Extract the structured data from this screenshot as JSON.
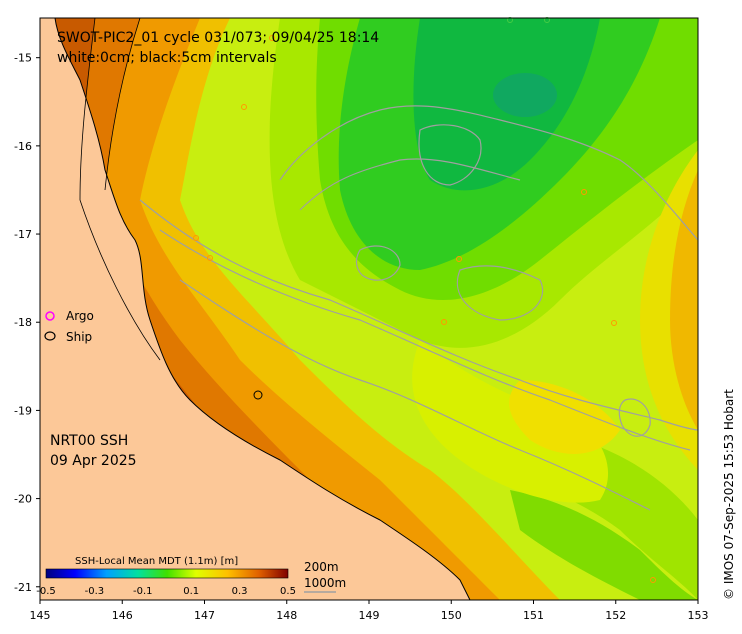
{
  "header": {
    "line1": "SWOT-PIC2_01 cycle 031/073; 09/04/25 18:14",
    "line2": "white:0cm; black:5cm intervals"
  },
  "product": {
    "name": "NRT00 SSH",
    "date": "09 Apr 2025"
  },
  "legend": {
    "argo_label": "Argo",
    "ship_label": "Ship",
    "argo_color": "#ff00ff",
    "ship_color": "#000000"
  },
  "colorbar": {
    "title": "SSH-Local Mean MDT (1.1m) [m]",
    "ticks": [
      "-0.5",
      "-0.3",
      "-0.1",
      "0.1",
      "0.3",
      "0.5"
    ],
    "range": [
      -0.5,
      0.5
    ]
  },
  "depth_legend": {
    "line1": "200m",
    "line2": "1000m"
  },
  "axes": {
    "x_ticks": [
      "145",
      "146",
      "147",
      "148",
      "149",
      "150",
      "151",
      "152",
      "153"
    ],
    "y_ticks": [
      "-15",
      "-16",
      "-17",
      "-18",
      "-19",
      "-20",
      "-21"
    ],
    "x_range": [
      145,
      153
    ],
    "y_range": [
      -21.15,
      -14.55
    ]
  },
  "copyright": "© IMOS 07-Sep-2025 15:53 Hobart",
  "colors": {
    "land": "#fcc898",
    "coast": "#000000",
    "bathymetry": "#a0a0a0",
    "frame": "#000000"
  }
}
